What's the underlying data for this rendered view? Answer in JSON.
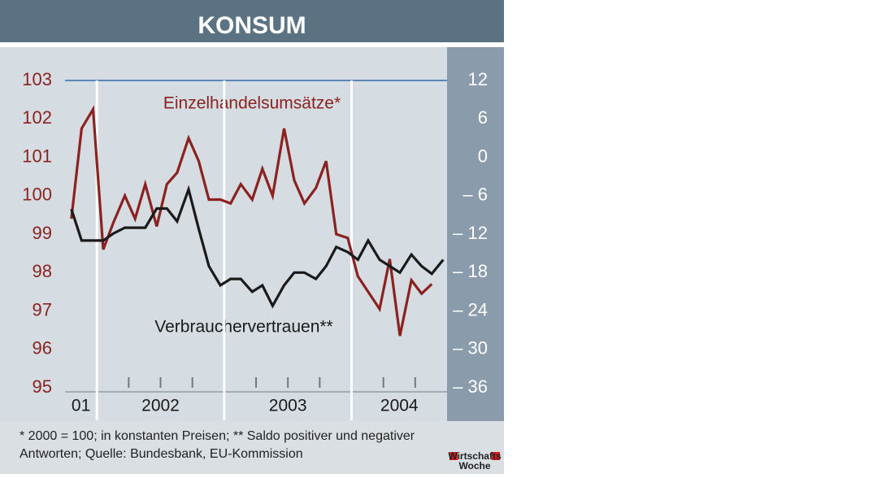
{
  "chart_data": {
    "type": "line",
    "title": "KONSUM",
    "annotations": [
      "Einzelhandelsumsätze*",
      "Verbrauchervertrauen**"
    ],
    "footnote": [
      "* 2000 = 100; in konstanten Preisen; ** Saldo positiver und negativer",
      "Antworten; Quelle: Bundesbank, EU-Kommission"
    ],
    "logo": [
      "Wirtschafts",
      "Woche"
    ],
    "x": [
      2001.8,
      2001.88,
      2001.97,
      2002.05,
      2002.13,
      2002.22,
      2002.3,
      2002.38,
      2002.47,
      2002.55,
      2002.63,
      2002.72,
      2002.8,
      2002.88,
      2002.97,
      2003.05,
      2003.13,
      2003.22,
      2003.3,
      2003.38,
      2003.47,
      2003.55,
      2003.63,
      2003.72,
      2003.8,
      2003.88,
      2003.97,
      2004.05,
      2004.13,
      2004.22,
      2004.3,
      2004.38,
      2004.47,
      2004.55,
      2004.63,
      2004.72
    ],
    "xlim": [
      2001.75,
      2004.75
    ],
    "xticks": [
      {
        "value": 2001,
        "label": "01"
      },
      2002,
      2003,
      2004
    ],
    "xminor_ticks": [
      2002.25,
      2002.5,
      2002.75,
      2003.25,
      2003.5,
      2003.75,
      2004.25,
      2004.5
    ],
    "series": [
      {
        "name": "Einzelhandelsumsätze*",
        "color": "#8b2220",
        "axis": "y",
        "values": [
          99.4,
          101.75,
          102.25,
          98.6,
          99.3,
          100.0,
          99.4,
          100.3,
          99.2,
          100.3,
          100.6,
          101.5,
          100.9,
          99.9,
          99.9,
          99.8,
          100.3,
          99.9,
          100.7,
          100.0,
          101.75,
          100.4,
          99.8,
          100.2,
          100.9,
          99.0,
          98.9,
          97.9,
          97.5,
          97.05,
          98.35,
          96.35,
          97.8,
          97.45,
          97.7,
          null
        ]
      },
      {
        "name": "Verbrauchervertrauen**",
        "color": "#1a1a1a",
        "axis": "y2",
        "values": [
          -8.1,
          -13,
          -13,
          -13,
          -11.9,
          -11,
          -11,
          -11,
          -8,
          -8,
          -10,
          -5,
          -11.2,
          -17,
          -20,
          -19,
          -19,
          -21,
          -20,
          -23.2,
          -20,
          -18,
          -18,
          -19,
          -17,
          -14,
          -14.8,
          -16,
          -13,
          -16,
          -17,
          -18,
          -15.2,
          -17,
          -18.2,
          -16
        ]
      }
    ],
    "ylim": [
      95,
      103
    ],
    "yticks": [
      95,
      96,
      97,
      98,
      99,
      100,
      101,
      102,
      103
    ],
    "y2lim": [
      -36,
      12
    ],
    "y2ticks": [
      {
        "value": -36,
        "label": "– 36"
      },
      {
        "value": -30,
        "label": "– 30"
      },
      {
        "value": -24,
        "label": "– 24"
      },
      {
        "value": -18,
        "label": "– 18"
      },
      {
        "value": -12,
        "label": "– 12"
      },
      {
        "value": -6,
        "label": "– 6"
      },
      0,
      6,
      12
    ]
  }
}
